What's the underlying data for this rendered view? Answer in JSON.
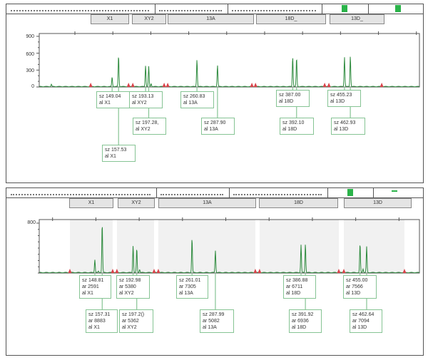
{
  "colors": {
    "trace": "#2e8b3e",
    "marker": "#d9424a",
    "box_border": "#86c494",
    "bin_shade": "#f1f1f1",
    "header_square": "#2bb34a"
  },
  "panels": [
    {
      "bins": [
        "X1",
        "XY2",
        "13A",
        "18D_",
        "13D_"
      ],
      "y_ticks": [
        "900",
        "600",
        "300",
        "0"
      ],
      "boxes": [
        {
          "sz": "sz 149.04",
          "al": "al X1"
        },
        {
          "sz": "sz 157.53",
          "al": "al X1"
        },
        {
          "sz": "sz 193.13",
          "al": "al XY2"
        },
        {
          "sz": "sz 197.28,",
          "al": "al XY2"
        },
        {
          "sz": "sz 260.83",
          "al": "al 13A"
        },
        {
          "sz": "sz 287.90",
          "al": "al 13A"
        },
        {
          "sz": "sz 387.00",
          "al": "al 18D"
        },
        {
          "sz": "sz 392.10",
          "al": "al 18D"
        },
        {
          "sz": "sz 455.23",
          "al": "al 13D"
        },
        {
          "sz": "sz 462.93",
          "al": "al 13D"
        }
      ]
    },
    {
      "bins": [
        "X1",
        "XY2",
        "13A",
        "18D",
        "13D"
      ],
      "y_ticks": [
        "800"
      ],
      "boxes": [
        {
          "sz": "sz 148.81",
          "ar": "ar 2591",
          "al": "al X1"
        },
        {
          "sz": "sz 157.31",
          "ar": "ar 8883",
          "al": "al X1"
        },
        {
          "sz": "sz 192.98",
          "ar": "ar 5380",
          "al": "al XY2"
        },
        {
          "sz": "sz 197.2()",
          "ar": "ar 5362",
          "al": "al XY2"
        },
        {
          "sz": "sz 261.01",
          "ar": "ar 7305",
          "al": "al 13A"
        },
        {
          "sz": "sz 287.99",
          "ar": "ar 5082",
          "al": "al 13A"
        },
        {
          "sz": "sz 386.88",
          "ar": "ar 6711",
          "al": "al 18D"
        },
        {
          "sz": "sz 391.92",
          "ar": "ar 6936",
          "al": "al 18D"
        },
        {
          "sz": "sz 455.00",
          "ar": "ar 7566",
          "al": "al 13D"
        },
        {
          "sz": "sz 462.64",
          "ar": "ar 7094",
          "al": "al 13D"
        }
      ]
    }
  ],
  "chart_data": [
    {
      "type": "line",
      "xlim": [
        53,
        554
      ],
      "ylim": [
        0,
        950
      ],
      "y_ticks": [
        0,
        300,
        600,
        900
      ],
      "peaks": [
        {
          "size": 69,
          "height": 40
        },
        {
          "size": 149.04,
          "height": 168
        },
        {
          "size": 157.53,
          "height": 551
        },
        {
          "size": 193.13,
          "height": 375
        },
        {
          "size": 197.28,
          "height": 357
        },
        {
          "size": 200.5,
          "height": 50
        },
        {
          "size": 260.83,
          "height": 481
        },
        {
          "size": 287.9,
          "height": 379
        },
        {
          "size": 387.0,
          "height": 529
        },
        {
          "size": 392.1,
          "height": 512
        },
        {
          "size": 455.23,
          "height": 529
        },
        {
          "size": 462.93,
          "height": 543
        }
      ],
      "bin_markers": [
        120.8,
        170.7,
        176.3,
        217.6,
        222.3,
        333.2,
        338.0,
        429.1,
        434.7,
        504.3
      ]
    },
    {
      "type": "line",
      "xlim": [
        84.6,
        523.6
      ],
      "ylim": [
        0,
        857
      ],
      "y_ticks": [
        800
      ],
      "peaks": [
        {
          "size": 148.81,
          "height": 209
        },
        {
          "size": 157.31,
          "height": 788
        },
        {
          "size": 153,
          "height": 20
        },
        {
          "size": 192.98,
          "height": 433
        },
        {
          "size": 197.2,
          "height": 386
        },
        {
          "size": 200.5,
          "height": 50
        },
        {
          "size": 261.01,
          "height": 552
        },
        {
          "size": 287.99,
          "height": 355
        },
        {
          "size": 386.88,
          "height": 445
        },
        {
          "size": 391.92,
          "height": 461
        },
        {
          "size": 455.0,
          "height": 461
        },
        {
          "size": 458.5,
          "height": 60
        },
        {
          "size": 462.64,
          "height": 414
        }
      ],
      "bin_markers": [
        120.0,
        169.4,
        174.3,
        217.2,
        222.1,
        334.1,
        339.0,
        430.5,
        436.3,
        506.3
      ]
    }
  ]
}
